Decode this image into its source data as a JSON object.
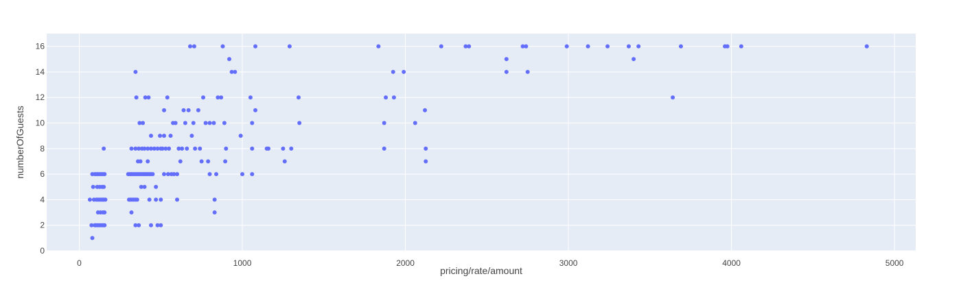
{
  "chart_data": {
    "type": "scatter",
    "title": "",
    "xlabel": "pricing/rate/amount",
    "ylabel": "numberOfGuests",
    "xlim": [
      -200,
      5130
    ],
    "ylim": [
      0,
      17
    ],
    "x_ticks": [
      0,
      1000,
      2000,
      3000,
      4000,
      5000
    ],
    "x_tick_labels": [
      "0",
      "1000",
      "2000",
      "3000",
      "4000",
      "5000"
    ],
    "y_ticks": [
      0,
      2,
      4,
      6,
      8,
      10,
      12,
      14,
      16
    ],
    "y_tick_labels": [
      "0",
      "2",
      "4",
      "6",
      "8",
      "10",
      "12",
      "14",
      "16"
    ],
    "grid": true,
    "colors": {
      "marker": "#636efa",
      "plot_bg": "#e5ecf6",
      "grid": "#ffffff"
    },
    "series": [
      {
        "points": [
          [
            80,
            1
          ],
          [
            65,
            4
          ],
          [
            75,
            2
          ],
          [
            95,
            2
          ],
          [
            110,
            2
          ],
          [
            120,
            2
          ],
          [
            130,
            2
          ],
          [
            140,
            2
          ],
          [
            150,
            2
          ],
          [
            155,
            2
          ],
          [
            100,
            2
          ],
          [
            115,
            3
          ],
          [
            130,
            3
          ],
          [
            145,
            3
          ],
          [
            155,
            3
          ],
          [
            90,
            4
          ],
          [
            105,
            4
          ],
          [
            115,
            4
          ],
          [
            125,
            4
          ],
          [
            135,
            4
          ],
          [
            145,
            4
          ],
          [
            150,
            4
          ],
          [
            160,
            4
          ],
          [
            110,
            5
          ],
          [
            125,
            5
          ],
          [
            140,
            5
          ],
          [
            150,
            5
          ],
          [
            85,
            5
          ],
          [
            80,
            6
          ],
          [
            95,
            6
          ],
          [
            105,
            6
          ],
          [
            115,
            6
          ],
          [
            125,
            6
          ],
          [
            135,
            6
          ],
          [
            145,
            6
          ],
          [
            155,
            6
          ],
          [
            150,
            8
          ],
          [
            320,
            3
          ],
          [
            305,
            4
          ],
          [
            315,
            4
          ],
          [
            325,
            4
          ],
          [
            335,
            4
          ],
          [
            345,
            4
          ],
          [
            355,
            4
          ],
          [
            300,
            6
          ],
          [
            310,
            6
          ],
          [
            320,
            6
          ],
          [
            330,
            6
          ],
          [
            340,
            6
          ],
          [
            350,
            6
          ],
          [
            360,
            6
          ],
          [
            370,
            6
          ],
          [
            380,
            6
          ],
          [
            390,
            6
          ],
          [
            400,
            6
          ],
          [
            410,
            6
          ],
          [
            420,
            6
          ],
          [
            430,
            6
          ],
          [
            440,
            6
          ],
          [
            450,
            6
          ],
          [
            345,
            2
          ],
          [
            365,
            2
          ],
          [
            440,
            2
          ],
          [
            480,
            2
          ],
          [
            500,
            2
          ],
          [
            430,
            4
          ],
          [
            470,
            4
          ],
          [
            500,
            4
          ],
          [
            380,
            5
          ],
          [
            400,
            5
          ],
          [
            470,
            5
          ],
          [
            320,
            8
          ],
          [
            345,
            8
          ],
          [
            365,
            8
          ],
          [
            385,
            8
          ],
          [
            400,
            8
          ],
          [
            420,
            8
          ],
          [
            440,
            8
          ],
          [
            460,
            8
          ],
          [
            480,
            8
          ],
          [
            500,
            8
          ],
          [
            510,
            8
          ],
          [
            530,
            8
          ],
          [
            550,
            8
          ],
          [
            360,
            7
          ],
          [
            375,
            7
          ],
          [
            420,
            7
          ],
          [
            440,
            9
          ],
          [
            495,
            9
          ],
          [
            520,
            9
          ],
          [
            390,
            10
          ],
          [
            370,
            10
          ],
          [
            350,
            12
          ],
          [
            345,
            14
          ],
          [
            405,
            12
          ],
          [
            425,
            12
          ],
          [
            520,
            11
          ],
          [
            540,
            12
          ],
          [
            575,
            10
          ],
          [
            590,
            10
          ],
          [
            560,
            9
          ],
          [
            520,
            6
          ],
          [
            545,
            6
          ],
          [
            565,
            6
          ],
          [
            580,
            6
          ],
          [
            600,
            6
          ],
          [
            610,
            8
          ],
          [
            630,
            8
          ],
          [
            660,
            8
          ],
          [
            620,
            7
          ],
          [
            640,
            11
          ],
          [
            650,
            10
          ],
          [
            670,
            11
          ],
          [
            690,
            9
          ],
          [
            700,
            10
          ],
          [
            710,
            8
          ],
          [
            730,
            11
          ],
          [
            740,
            8
          ],
          [
            750,
            7
          ],
          [
            760,
            12
          ],
          [
            775,
            10
          ],
          [
            800,
            10
          ],
          [
            825,
            10
          ],
          [
            790,
            7
          ],
          [
            800,
            6
          ],
          [
            840,
            6
          ],
          [
            830,
            4
          ],
          [
            830,
            3
          ],
          [
            850,
            12
          ],
          [
            870,
            12
          ],
          [
            880,
            16
          ],
          [
            890,
            10
          ],
          [
            900,
            8
          ],
          [
            895,
            7
          ],
          [
            920,
            15
          ],
          [
            935,
            14
          ],
          [
            955,
            14
          ],
          [
            990,
            9
          ],
          [
            1000,
            6
          ],
          [
            1050,
            12
          ],
          [
            1060,
            10
          ],
          [
            1060,
            8
          ],
          [
            1060,
            6
          ],
          [
            1080,
            16
          ],
          [
            1080,
            11
          ],
          [
            1150,
            8
          ],
          [
            1160,
            8
          ],
          [
            1250,
            8
          ],
          [
            1260,
            7
          ],
          [
            1290,
            16
          ],
          [
            1300,
            8
          ],
          [
            1345,
            12
          ],
          [
            1350,
            10
          ],
          [
            680,
            16
          ],
          [
            705,
            16
          ],
          [
            600,
            4
          ],
          [
            1835,
            16
          ],
          [
            1870,
            8
          ],
          [
            1870,
            10
          ],
          [
            1880,
            12
          ],
          [
            1925,
            14
          ],
          [
            1930,
            12
          ],
          [
            1990,
            14
          ],
          [
            2060,
            10
          ],
          [
            2120,
            11
          ],
          [
            2125,
            8
          ],
          [
            2125,
            7
          ],
          [
            2220,
            16
          ],
          [
            2370,
            16
          ],
          [
            2390,
            16
          ],
          [
            2620,
            15
          ],
          [
            2620,
            14
          ],
          [
            2720,
            16
          ],
          [
            2740,
            16
          ],
          [
            2750,
            14
          ],
          [
            2990,
            16
          ],
          [
            3120,
            16
          ],
          [
            3240,
            16
          ],
          [
            3370,
            16
          ],
          [
            3400,
            15
          ],
          [
            3430,
            16
          ],
          [
            3640,
            12
          ],
          [
            3690,
            16
          ],
          [
            3960,
            16
          ],
          [
            3975,
            16
          ],
          [
            4060,
            16
          ],
          [
            4830,
            16
          ]
        ]
      }
    ]
  }
}
